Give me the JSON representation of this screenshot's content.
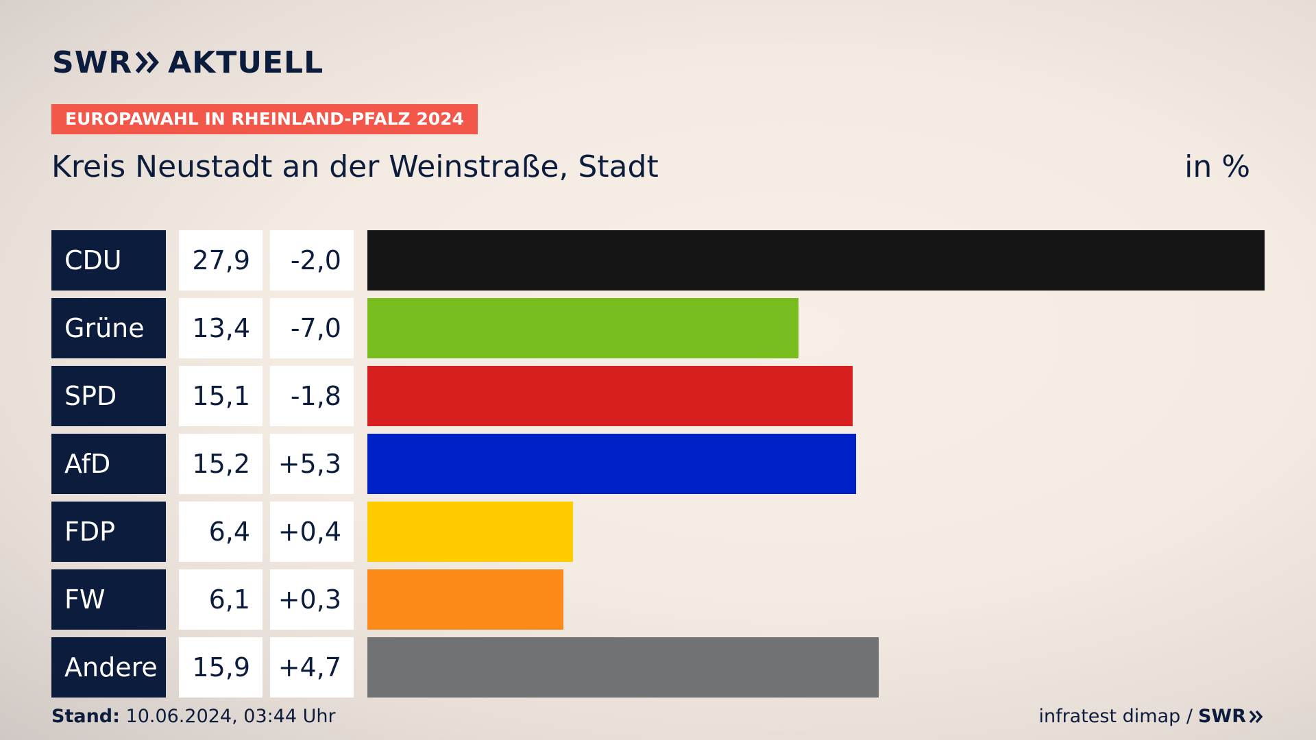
{
  "brand": {
    "name_left": "SWR",
    "name_right": "AKTUELL",
    "chevron_icon": "double-chevron-right-icon"
  },
  "badge": "EUROPAWAHL IN RHEINLAND-PFALZ 2024",
  "subtitle": "Kreis Neustadt an der Weinstraße, Stadt",
  "unit": "in %",
  "colors": {
    "navy": "#0c1c3d",
    "badge": "#f2574a",
    "CDU": "#141414",
    "Grüne": "#78bd1e",
    "SPD": "#d71f1f",
    "AfD": "#0021c8",
    "FDP": "#ffcc00",
    "FW": "#fb8a1a",
    "Andere": "#717274"
  },
  "chart_data": {
    "type": "bar",
    "orientation": "horizontal",
    "categories": [
      "CDU",
      "Grüne",
      "SPD",
      "AfD",
      "FDP",
      "FW",
      "Andere"
    ],
    "values": [
      27.9,
      13.4,
      15.1,
      15.2,
      6.4,
      6.1,
      15.9
    ],
    "value_labels": [
      "27,9",
      "13,4",
      "15,1",
      "15,2",
      "6,4",
      "6,1",
      "15,9"
    ],
    "changes": [
      -2.0,
      -7.0,
      -1.8,
      5.3,
      0.4,
      0.3,
      4.7
    ],
    "change_labels": [
      "-2,0",
      "-7,0",
      "-1,8",
      "+5,3",
      "+0,4",
      "+0,3",
      "+4,7"
    ],
    "xlim": [
      0,
      27.9
    ],
    "grid": false,
    "legend": "none"
  },
  "footer": {
    "stand_label": "Stand:",
    "stand_value": "10.06.2024, 03:44 Uhr",
    "source": "infratest dimap /",
    "source_brand": "SWR"
  }
}
